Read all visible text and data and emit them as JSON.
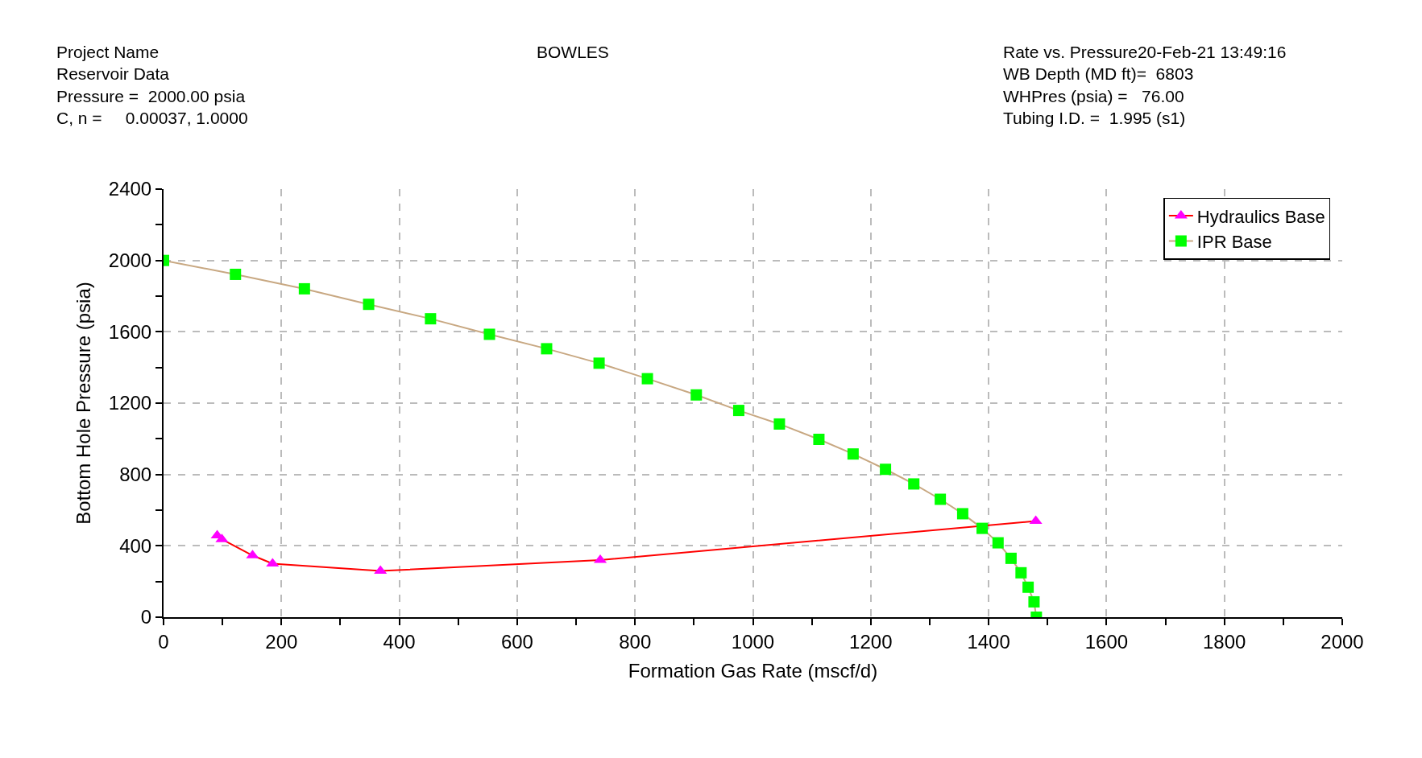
{
  "chart_data": {
    "type": "line",
    "title": "BOWLES",
    "annotations": [
      "Project Name\nReservoir Data\nPressure =  2000.00 psia\nC, n =     0.00037, 1.0000",
      "Rate vs. Pressure20-Feb-21 13:49:16\nWB Depth (MD ft)=  6803\nWHPres (psia) =   76.00\nTubing I.D. =  1.995 (s1)"
    ],
    "xlabel": "Formation Gas Rate (mscf/d)",
    "ylabel": "Bottom Hole Pressure (psia)",
    "xlim": [
      0,
      2000
    ],
    "ylim": [
      0,
      2400
    ],
    "xticks": [
      0,
      {
        "value": 100,
        "label": null
      },
      200,
      {
        "value": 300,
        "label": null
      },
      400,
      {
        "value": 500,
        "label": null
      },
      600,
      {
        "value": 700,
        "label": null
      },
      800,
      {
        "value": 900,
        "label": null
      },
      1000,
      {
        "value": 1100,
        "label": null
      },
      1200,
      {
        "value": 1300,
        "label": null
      },
      1400,
      {
        "value": 1500,
        "label": null
      },
      1600,
      {
        "value": 1700,
        "label": null
      },
      1800,
      {
        "value": 1900,
        "label": null
      },
      2000
    ],
    "yticks": [
      0,
      {
        "value": 200,
        "label": null
      },
      400,
      {
        "value": 600,
        "label": null
      },
      800,
      {
        "value": 1000,
        "label": null
      },
      1200,
      {
        "value": 1400,
        "label": null
      },
      1600,
      {
        "value": 1800,
        "label": null
      },
      2000,
      {
        "value": 2200,
        "label": null
      },
      2400
    ],
    "grid": true,
    "legend": "top right",
    "line_style": "solid",
    "series": [
      {
        "name": "Hydraulics Base",
        "color": "#ff0000",
        "colors": [
          "#ff00ff",
          "#ff00ff",
          "#ff00ff",
          "#ff00ff",
          "#ff00ff",
          "#ff00ff",
          "#ff00ff"
        ],
        "marker": "triangle",
        "x": [
          91,
          99,
          151,
          185,
          368,
          741,
          1480
        ],
        "values": [
          458,
          437,
          346,
          300,
          259,
          320,
          539
        ]
      },
      {
        "name": "IPR Base",
        "color": "#c8a882",
        "colors": [
          "#00ff00",
          "#00ff00",
          "#00ff00",
          "#00ff00",
          "#00ff00",
          "#00ff00",
          "#00ff00",
          "#00ff00",
          "#00ff00",
          "#00ff00",
          "#00ff00",
          "#00ff00",
          "#00ff00",
          "#00ff00",
          "#00ff00",
          "#00ff00",
          "#00ff00",
          "#00ff00",
          "#00ff00",
          "#00ff00",
          "#00ff00",
          "#00ff00",
          "#00ff00",
          "#00ff00",
          "#00ff00"
        ],
        "marker": "square",
        "x": [
          0,
          122,
          239,
          348,
          453,
          553,
          650,
          739,
          821,
          904,
          976,
          1045,
          1112,
          1170,
          1225,
          1273,
          1318,
          1356,
          1389,
          1416,
          1438,
          1455,
          1467,
          1477,
          1481
        ],
        "values": [
          2000,
          1922,
          1841,
          1754,
          1673,
          1586,
          1505,
          1424,
          1337,
          1246,
          1159,
          1083,
          997,
          915,
          829,
          747,
          661,
          580,
          498,
          417,
          330,
          249,
          168,
          86,
          0
        ]
      }
    ]
  }
}
